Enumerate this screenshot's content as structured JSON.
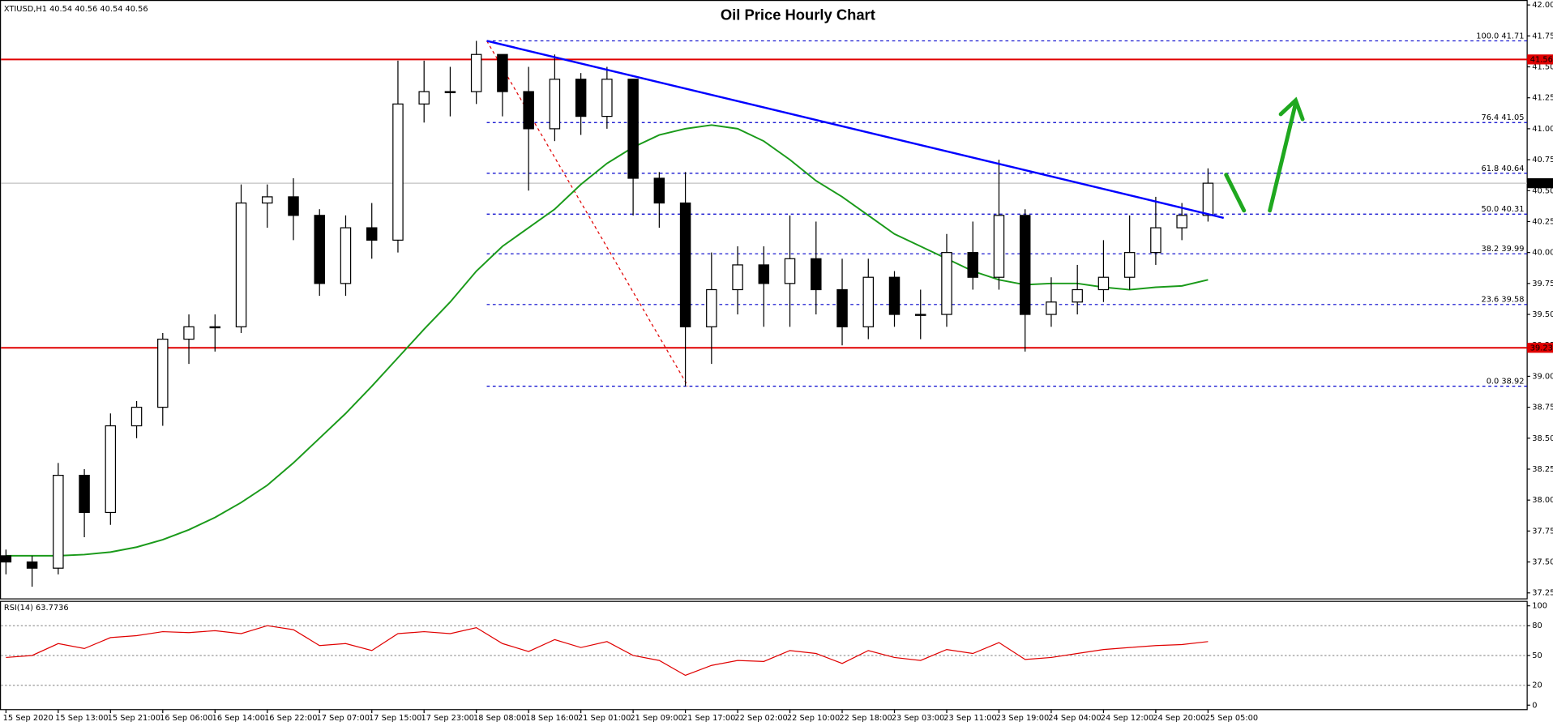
{
  "chart_data": {
    "type": "candlestick",
    "header": "XTIUSD,H1 40.54 40.56 40.54 40.56",
    "title": "Oil Price Hourly Chart",
    "categories": [
      "15 Sep 2020",
      null,
      "15 Sep 13:00",
      null,
      "15 Sep 21:00",
      null,
      "16 Sep 06:00",
      null,
      "16 Sep 14:00",
      null,
      "16 Sep 22:00",
      null,
      "17 Sep 07:00",
      null,
      "17 Sep 15:00",
      null,
      "17 Sep 23:00",
      null,
      "18 Sep 08:00",
      null,
      "18 Sep 16:00",
      null,
      "21 Sep 01:00",
      null,
      "21 Sep 09:00",
      null,
      "21 Sep 17:00",
      null,
      "22 Sep 02:00",
      null,
      "22 Sep 10:00",
      null,
      "22 Sep 18:00",
      null,
      "23 Sep 03:00",
      null,
      "23 Sep 11:00",
      null,
      "23 Sep 19:00",
      null,
      "24 Sep 04:00",
      null,
      "24 Sep 12:00",
      null,
      "24 Sep 20:00",
      null,
      "25 Sep 05:00"
    ],
    "open": [
      37.55,
      37.5,
      37.45,
      38.2,
      37.9,
      38.6,
      38.75,
      39.3,
      39.4,
      39.4,
      40.4,
      40.45,
      40.3,
      39.75,
      40.2,
      40.1,
      41.2,
      41.3,
      41.3,
      41.6,
      41.3,
      41.0,
      41.4,
      41.1,
      41.4,
      40.6,
      40.4,
      39.4,
      39.7,
      39.9,
      39.75,
      39.95,
      39.7,
      39.4,
      39.8,
      39.5,
      39.5,
      40.0,
      39.8,
      40.3,
      39.5,
      39.6,
      39.7,
      39.8,
      40.0,
      40.2,
      40.3
    ],
    "high": [
      37.6,
      37.55,
      38.3,
      38.25,
      38.7,
      38.8,
      39.35,
      39.5,
      39.5,
      40.55,
      40.55,
      40.6,
      40.35,
      40.3,
      40.4,
      41.55,
      41.55,
      41.5,
      41.71,
      41.6,
      41.5,
      41.6,
      41.45,
      41.5,
      41.4,
      40.65,
      40.65,
      40.0,
      40.05,
      40.05,
      40.3,
      40.25,
      39.95,
      39.95,
      39.85,
      39.7,
      40.15,
      40.25,
      40.75,
      40.35,
      39.8,
      39.9,
      40.1,
      40.3,
      40.45,
      40.4,
      40.68
    ],
    "low": [
      37.4,
      37.3,
      37.4,
      37.7,
      37.8,
      38.5,
      38.6,
      39.1,
      39.2,
      39.35,
      40.2,
      40.1,
      39.65,
      39.65,
      39.95,
      40.0,
      41.05,
      41.1,
      41.2,
      41.1,
      40.5,
      40.9,
      40.95,
      41.0,
      40.3,
      40.2,
      38.92,
      39.1,
      39.5,
      39.4,
      39.4,
      39.5,
      39.25,
      39.3,
      39.4,
      39.3,
      39.4,
      39.7,
      39.7,
      39.2,
      39.4,
      39.5,
      39.6,
      39.7,
      39.9,
      40.1,
      40.25
    ],
    "close": [
      37.5,
      37.45,
      38.2,
      37.9,
      38.6,
      38.75,
      39.3,
      39.4,
      39.4,
      40.4,
      40.45,
      40.3,
      39.75,
      40.2,
      40.1,
      41.2,
      41.3,
      41.3,
      41.6,
      41.3,
      41.0,
      41.4,
      41.1,
      41.4,
      40.6,
      40.4,
      39.4,
      39.7,
      39.9,
      39.75,
      39.95,
      39.7,
      39.4,
      39.8,
      39.5,
      39.5,
      40.0,
      39.8,
      40.3,
      39.5,
      39.6,
      39.7,
      39.8,
      40.0,
      40.2,
      40.3,
      40.56
    ],
    "up_color": "#ffffff",
    "down_color": "#000000",
    "ylim": [
      37.25,
      42.0
    ],
    "yticks": [
      37.25,
      {
        "value": 37.5,
        "label": "37.50"
      },
      37.75,
      {
        "value": 38,
        "label": "38.00"
      },
      38.25,
      {
        "value": 38.5,
        "label": "38.50"
      },
      38.75,
      {
        "value": 39,
        "label": "39.00"
      },
      39.25,
      {
        "value": 39.5,
        "label": "39.50"
      },
      39.75,
      {
        "value": 40,
        "label": "40.00"
      },
      40.25,
      {
        "value": 40.5,
        "label": "40.50"
      },
      40.75,
      {
        "value": 41,
        "label": "41.00"
      },
      41.25,
      {
        "value": 41.5,
        "label": "41.50"
      },
      41.75,
      {
        "value": 42,
        "label": "42.00"
      }
    ],
    "moving_average": {
      "color": "#1a9a1a",
      "values": [
        37.55,
        37.55,
        37.55,
        37.56,
        37.58,
        37.62,
        37.68,
        37.76,
        37.86,
        37.98,
        38.12,
        38.3,
        38.5,
        38.7,
        38.92,
        39.15,
        39.38,
        39.6,
        39.85,
        40.05,
        40.2,
        40.35,
        40.55,
        40.72,
        40.85,
        40.95,
        41.0,
        41.03,
        41.0,
        40.9,
        40.75,
        40.58,
        40.45,
        40.3,
        40.15,
        40.05,
        39.95,
        39.85,
        39.78,
        39.74,
        39.75,
        39.75,
        39.72,
        39.7,
        39.72,
        39.73,
        39.78
      ]
    },
    "horizontal_levels": [
      {
        "value": 41.56,
        "color": "#e00000"
      },
      {
        "value": 39.23,
        "color": "#e00000"
      }
    ],
    "current_price": {
      "value": 40.56,
      "color": "#c0c0c0"
    },
    "fib_color": "#0000cc",
    "fib_levels": [
      {
        "label": "100.0 41.71",
        "value": 41.71
      },
      {
        "label": "76.4 41.05",
        "value": 41.05
      },
      {
        "label": "61.8 40.64",
        "value": 40.64
      },
      {
        "label": "50.0 40.31",
        "value": 40.31
      },
      {
        "label": "38.2 39.99",
        "value": 39.99
      },
      {
        "label": "23.6 39.58",
        "value": 39.58
      },
      {
        "label": "0.0 38.92",
        "value": 38.92
      }
    ],
    "fib_start_x": 18.4,
    "fib_swing": {
      "color": "#e00000",
      "x": [
        18.4,
        26.1
      ],
      "y": [
        41.71,
        38.92
      ]
    },
    "trendline": {
      "color": "#0000ff",
      "x": [
        18.4,
        46.6
      ],
      "y": [
        41.71,
        40.28
      ]
    },
    "rsi": {
      "title": "RSI(14) 63.7736",
      "color": "#e00000",
      "values": [
        48,
        50,
        62,
        57,
        68,
        70,
        74,
        73,
        75,
        72,
        80,
        76,
        60,
        62,
        55,
        72,
        74,
        72,
        78,
        62,
        54,
        66,
        58,
        64,
        50,
        45,
        30,
        40,
        45,
        44,
        55,
        52,
        42,
        55,
        48,
        45,
        56,
        52,
        63,
        46,
        48,
        52,
        56,
        58,
        60,
        61,
        64
      ],
      "ylim": [
        0,
        100
      ],
      "yticks": [
        0,
        20,
        50,
        80,
        100
      ]
    }
  }
}
